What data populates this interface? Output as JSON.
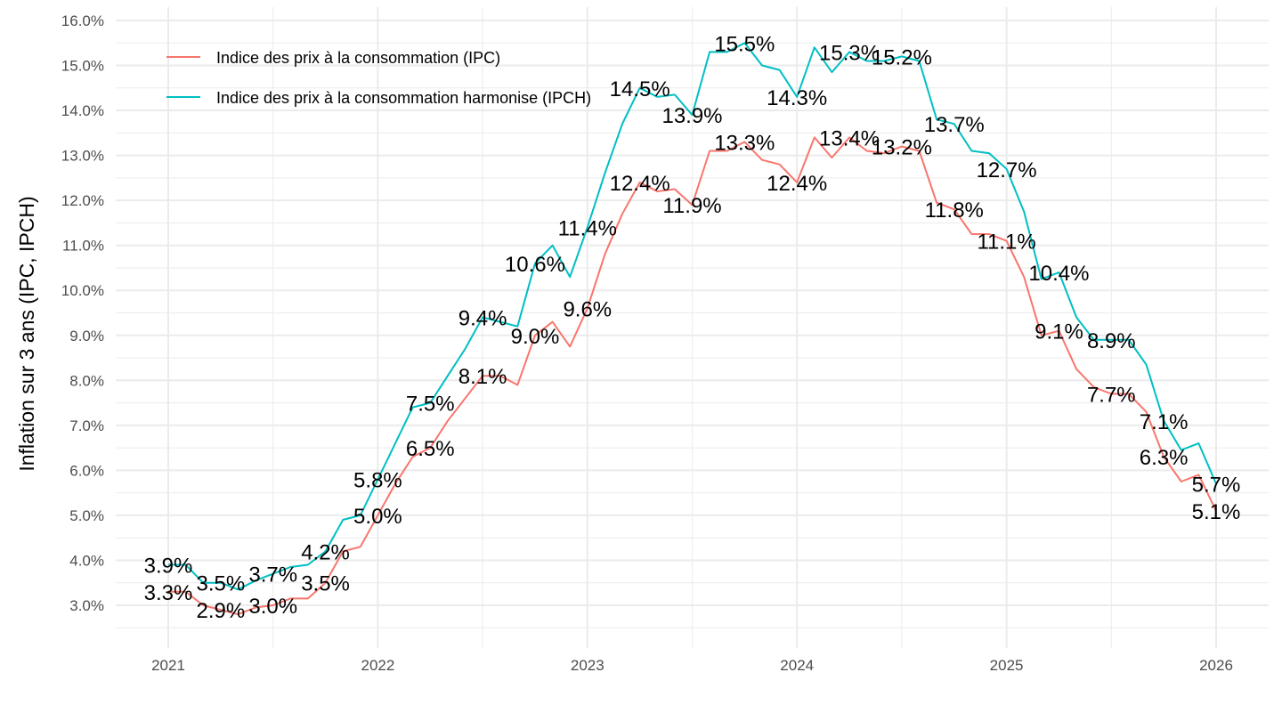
{
  "chart_data": {
    "type": "line",
    "title": "",
    "xlabel": "",
    "ylabel": "Inflation sur 3 ans (IPC, IPCH)",
    "x_ticks": [
      "2021",
      "2022",
      "2023",
      "2024",
      "2025",
      "2026"
    ],
    "y_ticks": [
      "3.0%",
      "4.0%",
      "5.0%",
      "6.0%",
      "7.0%",
      "8.0%",
      "9.0%",
      "10.0%",
      "11.0%",
      "12.0%",
      "13.0%",
      "14.0%",
      "15.0%",
      "16.0%"
    ],
    "ylim": [
      2.2,
      16.3
    ],
    "xlim": [
      "2020-10",
      "2026-04"
    ],
    "grid": true,
    "legend_position": "top-left",
    "x": [
      "2021-01",
      "2021-02",
      "2021-03",
      "2021-04",
      "2021-05",
      "2021-06",
      "2021-07",
      "2021-08",
      "2021-09",
      "2021-10",
      "2021-11",
      "2021-12",
      "2022-01",
      "2022-02",
      "2022-03",
      "2022-04",
      "2022-05",
      "2022-06",
      "2022-07",
      "2022-08",
      "2022-09",
      "2022-10",
      "2022-11",
      "2022-12",
      "2023-01",
      "2023-02",
      "2023-03",
      "2023-04",
      "2023-05",
      "2023-06",
      "2023-07",
      "2023-08",
      "2023-09",
      "2023-10",
      "2023-11",
      "2023-12",
      "2024-01",
      "2024-02",
      "2024-03",
      "2024-04",
      "2024-05",
      "2024-06",
      "2024-07",
      "2024-08",
      "2024-09",
      "2024-10",
      "2024-11",
      "2024-12",
      "2025-01",
      "2025-02",
      "2025-03",
      "2025-04",
      "2025-05",
      "2025-06",
      "2025-07",
      "2025-08",
      "2025-09",
      "2025-10",
      "2025-11",
      "2025-12",
      "2026-01"
    ],
    "series": [
      {
        "name": "Indice des prix à la consommation (IPC)",
        "color": "#F8766D",
        "values": [
          3.3,
          3.3,
          3.0,
          2.9,
          2.8,
          2.95,
          3.0,
          3.15,
          3.15,
          3.5,
          4.2,
          4.3,
          5.0,
          5.7,
          6.3,
          6.5,
          7.1,
          7.6,
          8.1,
          8.1,
          7.9,
          9.0,
          9.3,
          8.75,
          9.6,
          10.8,
          11.7,
          12.4,
          12.2,
          12.25,
          11.9,
          13.1,
          13.1,
          13.3,
          12.9,
          12.8,
          12.4,
          13.4,
          12.95,
          13.4,
          13.1,
          13.05,
          13.2,
          13.1,
          11.95,
          11.8,
          11.25,
          11.25,
          11.1,
          10.3,
          9.0,
          9.1,
          8.25,
          7.85,
          7.7,
          7.7,
          7.3,
          6.3,
          5.75,
          5.9,
          5.1
        ],
        "labels": [
          "3.3%",
          "2.9%",
          "3.0%",
          "3.5%",
          "5.0%",
          "6.5%",
          "8.1%",
          "9.0%",
          "9.6%",
          "12.4%",
          "11.9%",
          "13.3%",
          "12.4%",
          "13.4%",
          "13.2%",
          "11.8%",
          "11.1%",
          "9.1%",
          "7.7%",
          "6.3%",
          "5.1%"
        ]
      },
      {
        "name": "Indice des prix à la consommation harmonisé (IPCH)",
        "color": "#00BFC4",
        "values": [
          3.9,
          3.9,
          3.5,
          3.5,
          3.35,
          3.55,
          3.7,
          3.85,
          3.9,
          4.2,
          4.9,
          5.0,
          5.8,
          6.6,
          7.4,
          7.5,
          8.1,
          8.7,
          9.4,
          9.3,
          9.2,
          10.6,
          11.0,
          10.3,
          11.4,
          12.6,
          13.7,
          14.5,
          14.3,
          14.35,
          13.9,
          15.3,
          15.3,
          15.5,
          15.0,
          14.9,
          14.3,
          15.4,
          14.85,
          15.3,
          15.1,
          15.1,
          15.2,
          15.1,
          13.8,
          13.7,
          13.1,
          13.05,
          12.7,
          11.75,
          10.25,
          10.4,
          9.4,
          8.9,
          8.9,
          8.9,
          8.35,
          7.1,
          6.45,
          6.6,
          5.7
        ],
        "labels": [
          "3.9%",
          "3.5%",
          "3.7%",
          "4.2%",
          "5.8%",
          "7.5%",
          "9.4%",
          "10.6%",
          "11.4%",
          "14.5%",
          "13.9%",
          "15.5%",
          "14.3%",
          "15.3%",
          "15.2%",
          "13.7%",
          "12.7%",
          "10.4%",
          "8.9%",
          "7.1%",
          "5.7%"
        ]
      }
    ],
    "legend": [
      {
        "label": "Indice des prix à la consommation (IPC)",
        "color": "#F8766D"
      },
      {
        "label": "Indice des prix à la consommation harmonise (IPCH)",
        "color": "#00BFC4"
      }
    ]
  }
}
